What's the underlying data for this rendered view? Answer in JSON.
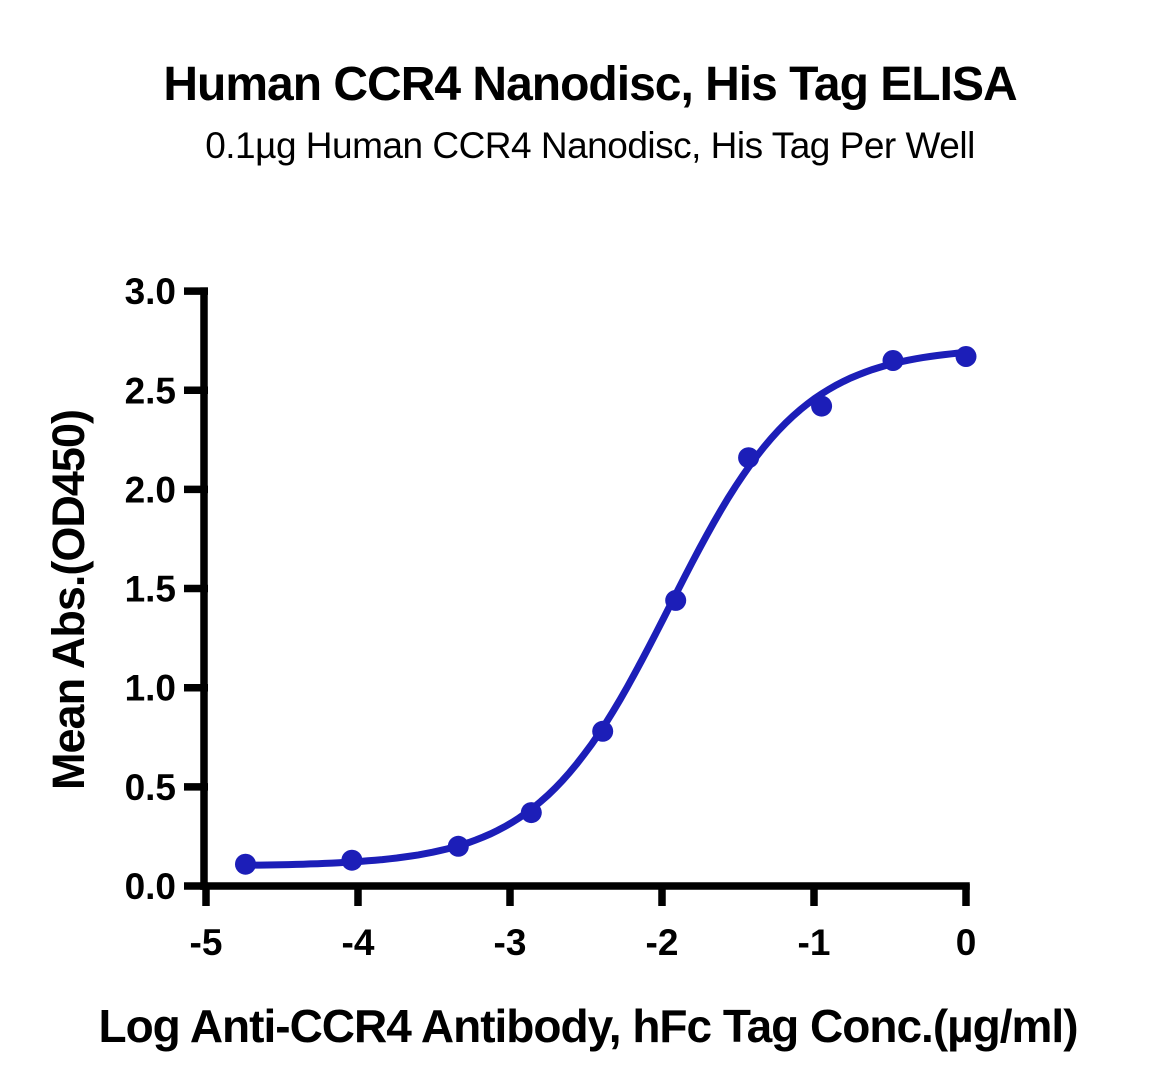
{
  "chart": {
    "title": "Human CCR4 Nanodisc, His Tag ELISA",
    "subtitle": "0.1µg Human CCR4 Nanodisc, His Tag Per Well",
    "x_axis_label": "Log Anti-CCR4 Antibody, hFc Tag Conc.(µg/ml)",
    "y_axis_label": "Mean Abs.(OD450)"
  },
  "chart_data": {
    "type": "scatter",
    "title": "Human CCR4 Nanodisc, His Tag ELISA",
    "subtitle": "0.1µg Human CCR4 Nanodisc, His Tag Per Well",
    "xlabel": "Log Anti-CCR4 Antibody, hFc Tag Conc.(µg/ml)",
    "ylabel": "Mean Abs.(OD450)",
    "x": [
      -4.74,
      -4.04,
      -3.34,
      -2.86,
      -2.39,
      -1.91,
      -1.43,
      -0.95,
      -0.48,
      0.0
    ],
    "y": [
      0.11,
      0.13,
      0.2,
      0.37,
      0.78,
      1.44,
      2.16,
      2.42,
      2.65,
      2.67
    ],
    "x_ticks": [
      -5,
      -4,
      -3,
      -2,
      -1,
      0
    ],
    "x_tick_labels": [
      "-5",
      "-4",
      "-3",
      "-2",
      "-1",
      "0"
    ],
    "y_ticks": [
      0,
      0.5,
      1,
      1.5,
      2,
      2.5,
      3
    ],
    "y_tick_labels": [
      "0.0",
      "0.5",
      "1.0",
      "1.5",
      "2.0",
      "2.5",
      "3.0"
    ],
    "xlim": [
      -5,
      0
    ],
    "ylim": [
      0,
      3
    ],
    "grid": false,
    "legend": false,
    "marker_color": "#1C1EB8",
    "line_color": "#1C1EB8",
    "axis_color": "#000000",
    "fit_curve": {
      "model": "4PL",
      "bottom": 0.1,
      "top": 2.72,
      "log_ec50": -1.95,
      "hill": 1.0,
      "x_start": -4.74,
      "x_end": 0.0
    }
  }
}
